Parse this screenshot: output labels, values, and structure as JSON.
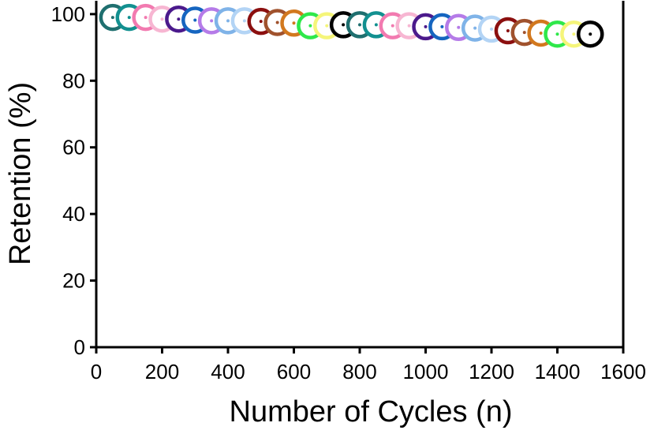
{
  "chart_data": {
    "type": "scatter",
    "x_label": "Number of Cycles (n)",
    "y_label": "Retention (%)",
    "x": [
      50,
      100,
      150,
      200,
      250,
      300,
      350,
      400,
      450,
      500,
      550,
      600,
      650,
      700,
      750,
      800,
      850,
      900,
      950,
      1000,
      1050,
      1100,
      1150,
      1200,
      1250,
      1300,
      1350,
      1400,
      1450,
      1500
    ],
    "values": [
      99,
      99,
      99,
      98.5,
      98.5,
      98.2,
      98,
      98,
      98,
      97.8,
      97.5,
      97.3,
      96.5,
      96.5,
      96.8,
      96.8,
      96.8,
      96.5,
      96.5,
      96.2,
      96.2,
      96,
      95.8,
      95.5,
      95,
      94.5,
      94.3,
      94,
      94,
      94
    ],
    "colors": [
      "#1f6f6f",
      "#129090",
      "#f27ab0",
      "#f7b6d2",
      "#4b1a8c",
      "#1565c0",
      "#b57be8",
      "#7fb3e8",
      "#b3d4f5",
      "#8b0f0f",
      "#a0522d",
      "#d2781e",
      "#2ee84a",
      "#f5f57a",
      "#000000",
      "#1f6f6f",
      "#129090",
      "#f27ab0",
      "#f7b6d2",
      "#4b1a8c",
      "#1565c0",
      "#b57be8",
      "#7fb3e8",
      "#b3d4f5",
      "#8b0f0f",
      "#a0522d",
      "#d2781e",
      "#2ee84a",
      "#f5f57a",
      "#000000"
    ],
    "xlim": [
      0,
      1600
    ],
    "xticks": [
      0,
      200,
      400,
      600,
      800,
      1000,
      1200,
      1400,
      1600
    ],
    "ylim": [
      0,
      104
    ],
    "yticks": [
      0,
      20,
      40,
      60,
      80,
      100
    ]
  }
}
